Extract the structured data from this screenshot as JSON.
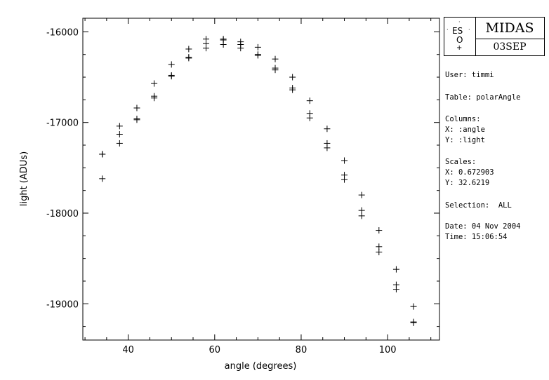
{
  "chart_data": {
    "type": "scatter",
    "xlabel": "angle (degrees)",
    "ylabel": "light (ADUs)",
    "xlim": [
      29.5,
      112
    ],
    "ylim": [
      -19400,
      -15850
    ],
    "x_ticks": [
      40,
      60,
      80,
      100
    ],
    "y_ticks": [
      -16000,
      -17000,
      -18000,
      -19000
    ],
    "x_tick_labels": [
      "40",
      "60",
      "80",
      "100"
    ],
    "y_tick_labels": [
      "-16000",
      "-17000",
      "-18000",
      "-19000"
    ],
    "marker": "plus",
    "grid": false,
    "series": [
      {
        "points": [
          [
            34,
            -17350
          ],
          [
            34,
            -17350
          ],
          [
            34,
            -17620
          ],
          [
            38,
            -17040
          ],
          [
            38,
            -17130
          ],
          [
            38,
            -17230
          ],
          [
            42,
            -16840
          ],
          [
            42,
            -16960
          ],
          [
            42,
            -16970
          ],
          [
            46,
            -16570
          ],
          [
            46,
            -16710
          ],
          [
            46,
            -16730
          ],
          [
            50,
            -16360
          ],
          [
            50,
            -16480
          ],
          [
            50,
            -16490
          ],
          [
            54,
            -16190
          ],
          [
            54,
            -16280
          ],
          [
            54,
            -16290
          ],
          [
            58,
            -16080
          ],
          [
            58,
            -16130
          ],
          [
            58,
            -16180
          ],
          [
            62,
            -16080
          ],
          [
            62,
            -16090
          ],
          [
            62,
            -16140
          ],
          [
            66,
            -16110
          ],
          [
            66,
            -16140
          ],
          [
            66,
            -16180
          ],
          [
            70,
            -16170
          ],
          [
            70,
            -16250
          ],
          [
            70,
            -16260
          ],
          [
            74,
            -16300
          ],
          [
            74,
            -16400
          ],
          [
            74,
            -16420
          ],
          [
            78,
            -16500
          ],
          [
            78,
            -16620
          ],
          [
            78,
            -16640
          ],
          [
            82,
            -16760
          ],
          [
            82,
            -16900
          ],
          [
            82,
            -16950
          ],
          [
            86,
            -17070
          ],
          [
            86,
            -17230
          ],
          [
            86,
            -17280
          ],
          [
            90,
            -17420
          ],
          [
            90,
            -17580
          ],
          [
            90,
            -17630
          ],
          [
            94,
            -17800
          ],
          [
            94,
            -17970
          ],
          [
            94,
            -18030
          ],
          [
            98,
            -18190
          ],
          [
            98,
            -18370
          ],
          [
            98,
            -18430
          ],
          [
            102,
            -18620
          ],
          [
            102,
            -18790
          ],
          [
            102,
            -18840
          ],
          [
            106,
            -19030
          ],
          [
            106,
            -19200
          ],
          [
            106,
            -19210
          ]
        ]
      }
    ]
  },
  "logo": {
    "top_text": "MIDAS",
    "bottom_text": "03SEP",
    "eso_letters": "ES",
    "eso_o": "O"
  },
  "info": {
    "user": "User: timmi",
    "table": "Table: polarAngle",
    "columns_title": "Columns:",
    "columns_x": "X: :angle",
    "columns_y": "Y: :light",
    "scales_title": "Scales:",
    "scales_x": "X: 0.672903",
    "scales_y": "Y: 32.6219",
    "selection": "Selection:  ALL",
    "date": "Date: 04 Nov 2004",
    "time": "Time: 15:06:54"
  }
}
